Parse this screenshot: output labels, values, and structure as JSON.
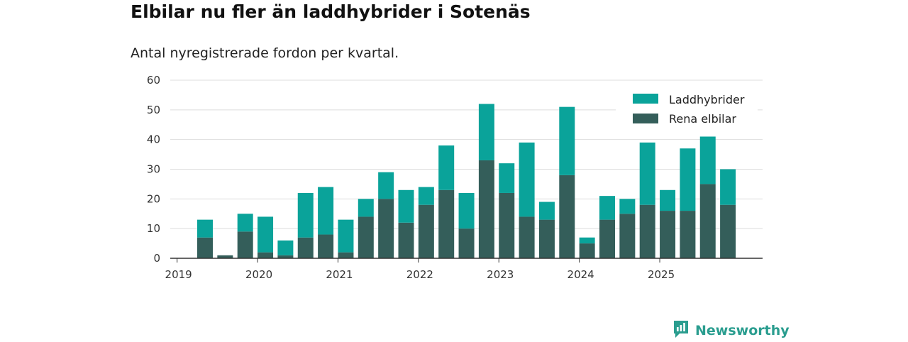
{
  "colors": {
    "laddhybrider": "#0aa39a",
    "rena_elbilar": "#345e5a",
    "grid": "#dddddd",
    "axis": "#333333",
    "brand": "#2a9d8f"
  },
  "brand": {
    "name": "Newsworthy",
    "icon": "newsworthy-logo-icon"
  },
  "chart_data": {
    "type": "bar",
    "stacked": true,
    "title": "Elbilar nu fler än laddhybrider i Sotenäs",
    "subtitle": "Antal nyregistrerade fordon per kvartal.",
    "xlabel": "",
    "ylabel": "",
    "ylim": [
      0,
      60
    ],
    "yticks": [
      0,
      10,
      20,
      30,
      40,
      50,
      60
    ],
    "grid": true,
    "legend_position": "top-right",
    "year_labels": [
      "2019",
      "2020",
      "2021",
      "2022",
      "2023",
      "2024",
      "2025"
    ],
    "categories": [
      "2019 Q1",
      "2019 Q2",
      "2019 Q3",
      "2019 Q4",
      "2020 Q1",
      "2020 Q2",
      "2020 Q3",
      "2020 Q4",
      "2021 Q1",
      "2021 Q2",
      "2021 Q3",
      "2021 Q4",
      "2022 Q1",
      "2022 Q2",
      "2022 Q3",
      "2022 Q4",
      "2023 Q1",
      "2023 Q2",
      "2023 Q3",
      "2023 Q4",
      "2024 Q1",
      "2024 Q2",
      "2024 Q3",
      "2024 Q4",
      "2025 Q1",
      "2025 Q2",
      "2025 Q3",
      "2025 Q4"
    ],
    "series": [
      {
        "name": "Rena elbilar",
        "values": [
          0,
          7,
          1,
          9,
          2,
          1,
          7,
          8,
          2,
          14,
          20,
          12,
          18,
          23,
          10,
          33,
          22,
          14,
          13,
          28,
          5,
          13,
          15,
          18,
          16,
          16,
          25,
          18
        ]
      },
      {
        "name": "Laddhybrider",
        "values": [
          0,
          6,
          0,
          6,
          12,
          5,
          15,
          16,
          11,
          6,
          9,
          11,
          6,
          15,
          12,
          19,
          10,
          25,
          6,
          23,
          2,
          8,
          5,
          21,
          7,
          21,
          16,
          12
        ]
      }
    ],
    "legend": [
      "Laddhybrider",
      "Rena elbilar"
    ]
  }
}
